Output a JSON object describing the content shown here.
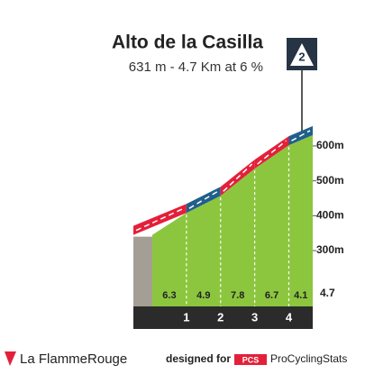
{
  "chart_data": {
    "type": "climb-profile",
    "title": "Alto de la Casilla",
    "subtitle": "631 m - 4.7 Km at 6 %",
    "category": "2",
    "x": [
      0,
      1,
      2,
      3,
      4,
      4.7
    ],
    "elevations": [
      345,
      408,
      457,
      535,
      602,
      631
    ],
    "gradients": [
      6.3,
      4.9,
      7.8,
      6.7,
      4.1
    ],
    "gradient_colors": [
      "#e3203a",
      "#1f5f8b",
      "#e3203a",
      "#e3203a",
      "#1f5f8b"
    ],
    "km_markers": [
      1,
      2,
      3,
      4
    ],
    "distance": 4.7,
    "xlim": [
      0,
      4.7
    ],
    "ylim": [
      140,
      760
    ],
    "yticks": [
      {
        "value": 300,
        "label": "300m"
      },
      {
        "value": 400,
        "label": "400m"
      },
      {
        "value": 500,
        "label": "500m"
      },
      {
        "value": 600,
        "label": "600m"
      }
    ],
    "area_color": "#8cc63f",
    "footer": {
      "brand": "La FlammeRouge",
      "designed": "designed for",
      "pcs": "PCS",
      "site": "ProCyclingStats"
    }
  }
}
